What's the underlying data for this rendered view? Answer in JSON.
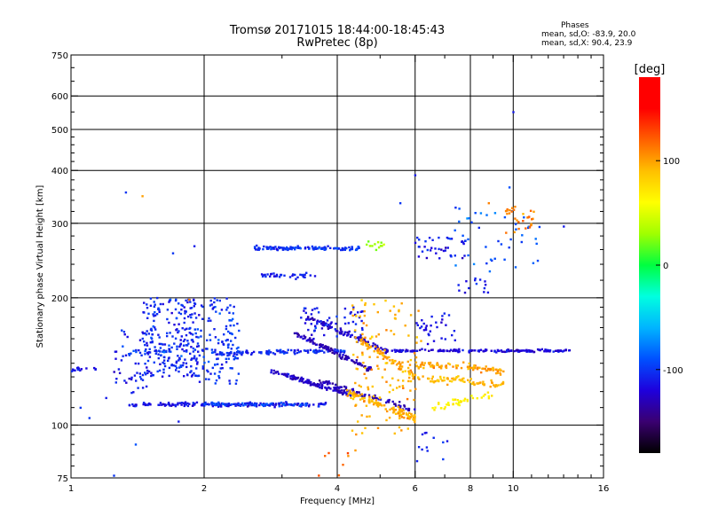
{
  "chart_data": {
    "type": "scatter",
    "title": "Tromsø 20171015 18:44:00-18:45:43",
    "subtitle": "RwPretec (8p)",
    "xlabel": "Frequency [MHz]",
    "ylabel": "Stationary phase Virtual Height [km]",
    "x_scale": "log",
    "y_scale": "log",
    "xlim": [
      1,
      16
    ],
    "ylim": [
      75,
      750
    ],
    "x_ticks": [
      1,
      2,
      4,
      6,
      8,
      10,
      16
    ],
    "x_minor_ticks": [
      3,
      5,
      7,
      9,
      11,
      12,
      13,
      14,
      15
    ],
    "x_tick_labels": [
      "1",
      "2",
      "4",
      "6",
      "8",
      "10",
      "16"
    ],
    "x_gridlines": [
      2,
      4,
      6,
      8,
      10
    ],
    "y_ticks": [
      75,
      100,
      200,
      300,
      400,
      500,
      600,
      750
    ],
    "y_tick_labels": [
      "75",
      "100",
      "200",
      "300",
      "400",
      "500",
      "600",
      "750"
    ],
    "y_gridlines": [
      100,
      200,
      300,
      400,
      500,
      600
    ],
    "grid": true,
    "stats": {
      "heading": "Phases",
      "line_o": "mean, sd,O: -83.9, 20.0",
      "line_x": "mean, sd,X:  90.4, 23.9"
    },
    "colorbar": {
      "label": "[deg]",
      "range": [
        -180,
        180
      ],
      "ticks": [
        100,
        0,
        -100
      ],
      "tick_labels": [
        "100",
        "0",
        "-100"
      ],
      "colors": [
        "#000000",
        "#3a0070",
        "#1e00dc",
        "#0050ff",
        "#00b4ff",
        "#00ffe0",
        "#00ff40",
        "#a0ff00",
        "#ffff00",
        "#ffc000",
        "#ff6000",
        "#ff0000",
        "#ff0000"
      ]
    },
    "series": [
      {
        "kind": "trace",
        "x": [
          1.0,
          1.15
        ],
        "y": [
          135,
          137
        ],
        "phase": -110,
        "count": 14,
        "jitter": 0.015
      },
      {
        "kind": "trace",
        "x": [
          1.35,
          1.65
        ],
        "y": [
          148,
          150
        ],
        "phase": -100,
        "count": 24,
        "jitter": 0.02
      },
      {
        "kind": "trace",
        "x": [
          1.35,
          3.8
        ],
        "y": [
          112,
          112
        ],
        "phase": -115,
        "count": 180,
        "jitter": 0.01
      },
      {
        "kind": "trace",
        "x": [
          2.0,
          3.4
        ],
        "y": [
          112,
          112
        ],
        "phase": -95,
        "count": 60,
        "jitter": 0.01
      },
      {
        "kind": "trace",
        "x": [
          2.1,
          4.2
        ],
        "y": [
          148,
          150
        ],
        "phase": -105,
        "count": 110,
        "jitter": 0.012
      },
      {
        "kind": "trace",
        "x": [
          5.3,
          13.5
        ],
        "y": [
          150,
          150
        ],
        "phase": -120,
        "count": 170,
        "jitter": 0.007
      },
      {
        "kind": "trace",
        "x": [
          2.6,
          4.5
        ],
        "y": [
          262,
          262
        ],
        "phase": -100,
        "count": 120,
        "jitter": 0.01
      },
      {
        "kind": "trace",
        "x": [
          2.7,
          3.6
        ],
        "y": [
          226,
          226
        ],
        "phase": -110,
        "count": 36,
        "jitter": 0.012
      },
      {
        "kind": "trace",
        "x": [
          2.8,
          4.3
        ],
        "y": [
          135,
          118
        ],
        "phase": -125,
        "count": 130,
        "jitter": 0.012
      },
      {
        "kind": "trace",
        "x": [
          3.2,
          4.8
        ],
        "y": [
          165,
          135
        ],
        "phase": -130,
        "count": 110,
        "jitter": 0.012
      },
      {
        "kind": "trace",
        "x": [
          3.4,
          5.2
        ],
        "y": [
          180,
          150
        ],
        "phase": -125,
        "count": 90,
        "jitter": 0.015
      },
      {
        "kind": "trace",
        "x": [
          3.6,
          6.0
        ],
        "y": [
          128,
          108
        ],
        "phase": -130,
        "count": 80,
        "jitter": 0.015
      },
      {
        "kind": "trace",
        "x": [
          4.2,
          6.0
        ],
        "y": [
          120,
          104
        ],
        "phase": 95,
        "count": 100,
        "jitter": 0.02
      },
      {
        "kind": "trace",
        "x": [
          4.5,
          6.0
        ],
        "y": [
          160,
          130
        ],
        "phase": 100,
        "count": 70,
        "jitter": 0.025
      },
      {
        "kind": "trace",
        "x": [
          6.0,
          9.5
        ],
        "y": [
          140,
          135
        ],
        "phase": 100,
        "count": 90,
        "jitter": 0.02
      },
      {
        "kind": "trace",
        "x": [
          6.5,
          9.0
        ],
        "y": [
          110,
          118
        ],
        "phase": 70,
        "count": 40,
        "jitter": 0.02
      },
      {
        "kind": "trace",
        "x": [
          6.0,
          8.0
        ],
        "y": [
          128,
          128
        ],
        "phase": 90,
        "count": 45,
        "jitter": 0.02
      },
      {
        "kind": "trace",
        "x": [
          8.0,
          9.5
        ],
        "y": [
          125,
          125
        ],
        "phase": 95,
        "count": 30,
        "jitter": 0.015
      },
      {
        "kind": "trace",
        "x": [
          4.6,
          5.1
        ],
        "y": [
          268,
          265
        ],
        "phase": 30,
        "count": 12,
        "jitter": 0.02
      },
      {
        "kind": "cloud",
        "x": [
          1.45,
          1.95
        ],
        "y": [
          130,
          200
        ],
        "phase": -105,
        "count": 240
      },
      {
        "kind": "cloud",
        "x": [
          1.95,
          2.4
        ],
        "y": [
          125,
          200
        ],
        "phase": -100,
        "count": 120
      },
      {
        "kind": "cloud",
        "x": [
          1.25,
          1.5
        ],
        "y": [
          118,
          170
        ],
        "phase": -110,
        "count": 45
      },
      {
        "kind": "cloud",
        "x": [
          3.3,
          4.6
        ],
        "y": [
          160,
          190
        ],
        "phase": -110,
        "count": 60
      },
      {
        "kind": "cloud",
        "x": [
          4.3,
          6.2
        ],
        "y": [
          95,
          200
        ],
        "phase": 95,
        "count": 130
      },
      {
        "kind": "cloud",
        "x": [
          6.0,
          7.5
        ],
        "y": [
          155,
          185
        ],
        "phase": -115,
        "count": 30
      },
      {
        "kind": "cloud",
        "x": [
          6.0,
          7.8
        ],
        "y": [
          248,
          278
        ],
        "phase": -110,
        "count": 40
      },
      {
        "kind": "cloud",
        "x": [
          7.2,
          11.5
        ],
        "y": [
          230,
          330
        ],
        "phase": -90,
        "count": 45
      },
      {
        "kind": "cloud",
        "x": [
          9.6,
          11.2
        ],
        "y": [
          285,
          330
        ],
        "phase": 110,
        "count": 30
      },
      {
        "kind": "cloud",
        "x": [
          7.5,
          8.8
        ],
        "y": [
          205,
          225
        ],
        "phase": -110,
        "count": 14
      },
      {
        "kind": "cloud",
        "x": [
          6.0,
          7.2
        ],
        "y": [
          82,
          98
        ],
        "phase": -110,
        "count": 12
      },
      {
        "kind": "cloud",
        "x": [
          3.6,
          4.4
        ],
        "y": [
          76,
          88
        ],
        "phase": 120,
        "count": 8
      },
      {
        "kind": "points",
        "points": [
          [
            1.33,
            355,
            -100
          ],
          [
            1.45,
            348,
            100
          ],
          [
            5.55,
            335,
            -100
          ],
          [
            6.0,
            390,
            -110
          ],
          [
            10.0,
            550,
            -110
          ],
          [
            9.8,
            365,
            -90
          ],
          [
            1.25,
            76,
            -100
          ],
          [
            1.4,
            90,
            -90
          ],
          [
            1.75,
            102,
            -110
          ],
          [
            1.85,
            198,
            110
          ],
          [
            1.7,
            255,
            -100
          ],
          [
            1.9,
            265,
            -110
          ],
          [
            13.0,
            295,
            -110
          ],
          [
            8.8,
            335,
            110
          ],
          [
            1.05,
            110,
            -100
          ],
          [
            1.1,
            104,
            -100
          ],
          [
            1.2,
            116,
            -110
          ]
        ]
      }
    ]
  }
}
